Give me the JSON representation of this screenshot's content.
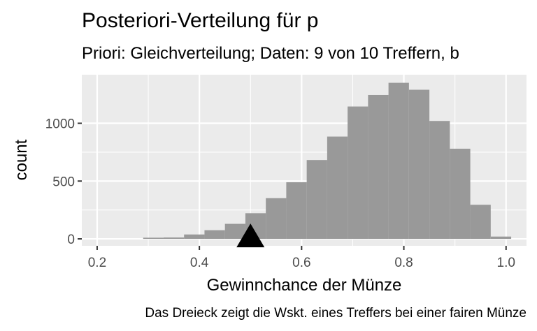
{
  "chart_data": {
    "type": "bar",
    "title": "Posteriori-Verteilung für p",
    "subtitle": "Priori: Gleichverteilung; Daten: 9 von 10 Treffern, b",
    "xlabel": "Gewinnchance der Münze",
    "ylabel": "count",
    "caption": "Das Dreieck zeigt die Wskt. eines Treffers bei einer fairen Münze",
    "xlim": [
      0.17,
      1.04
    ],
    "ylim": [
      -60,
      1420
    ],
    "x_ticks": [
      0.2,
      0.4,
      0.6,
      0.8,
      1.0
    ],
    "x_tick_labels": [
      "0.2",
      "0.4",
      "0.6",
      "0.8",
      "1.0"
    ],
    "y_ticks": [
      0,
      500,
      1000
    ],
    "y_tick_labels": [
      "0",
      "500",
      "1000"
    ],
    "bin_width": 0.04,
    "bins": [
      {
        "x0": 0.29,
        "count": 10
      },
      {
        "x0": 0.33,
        "count": 12
      },
      {
        "x0": 0.37,
        "count": 38
      },
      {
        "x0": 0.41,
        "count": 75
      },
      {
        "x0": 0.45,
        "count": 130
      },
      {
        "x0": 0.49,
        "count": 222
      },
      {
        "x0": 0.53,
        "count": 352
      },
      {
        "x0": 0.57,
        "count": 490
      },
      {
        "x0": 0.61,
        "count": 682
      },
      {
        "x0": 0.65,
        "count": 885
      },
      {
        "x0": 0.69,
        "count": 1145
      },
      {
        "x0": 0.73,
        "count": 1245
      },
      {
        "x0": 0.77,
        "count": 1350
      },
      {
        "x0": 0.81,
        "count": 1290
      },
      {
        "x0": 0.85,
        "count": 1020
      },
      {
        "x0": 0.89,
        "count": 780
      },
      {
        "x0": 0.93,
        "count": 295
      },
      {
        "x0": 0.97,
        "count": 20
      }
    ],
    "marker": {
      "shape": "triangle",
      "x": 0.5,
      "y": 0
    },
    "grid": true,
    "colors": {
      "panel": "#ebebeb",
      "grid": "#ffffff",
      "bar": "#999999",
      "marker": "#000000",
      "text": "#1a1a1a",
      "tick_text": "#4d4d4d"
    }
  }
}
